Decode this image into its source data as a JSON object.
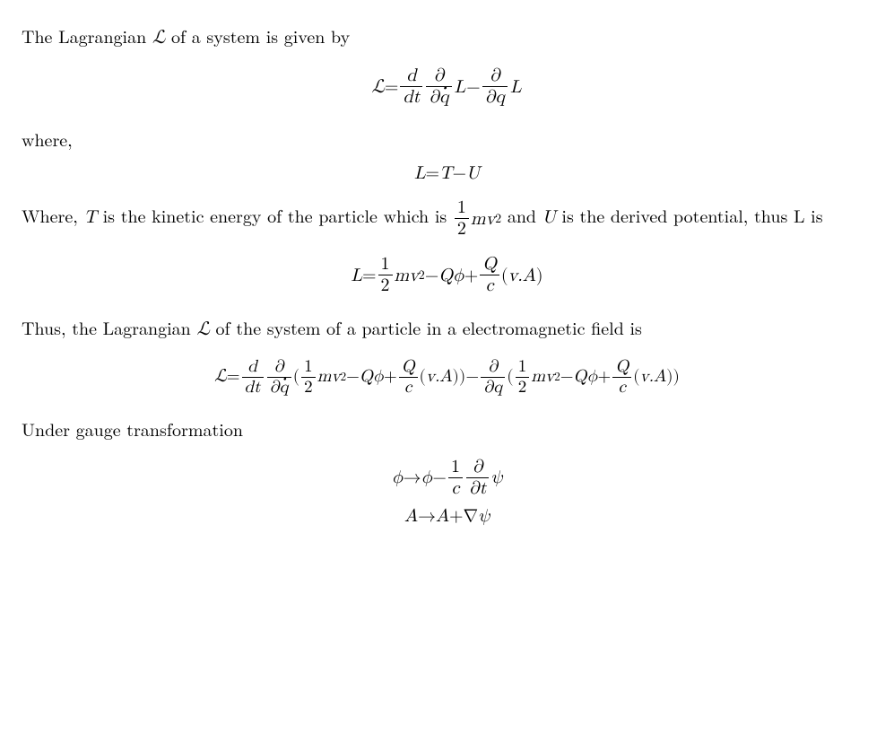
{
  "colors": {
    "text": "#000000",
    "background": "#ffffff",
    "rule": "#000000"
  },
  "typography": {
    "body_fontsize_pt": 15,
    "math_family": "Latin Modern Math"
  },
  "p1": {
    "text_a": "The Lagrangian ",
    "sym_L": "ℒ",
    "text_b": " of a system is given by"
  },
  "eq1": {
    "lhs": "ℒ",
    "eq": " = ",
    "frac1_num": "d",
    "frac1_den": "dt",
    "frac2_num": "∂",
    "frac2_den_a": "∂",
    "frac2_den_q": "q",
    "L": "L",
    "minus": " − ",
    "frac3_num": "∂",
    "frac3_den": "∂q",
    "L2": "L"
  },
  "p2": {
    "text": "where,"
  },
  "eq2": {
    "L": "L",
    "eq": " = ",
    "T": "T",
    "minus": " − ",
    "U": "U"
  },
  "p3": {
    "a": "Where, ",
    "T": "T",
    "b": " is the kinetic energy of the particle which is ",
    "half_num": "1",
    "half_den": "2",
    "mv2_m": "m",
    "mv2_v": "v",
    "mv2_exp": "2",
    "c": " and ",
    "U": "U",
    "d": " is the derived potential, thus L is"
  },
  "eq3": {
    "L": "L",
    "eq": " = ",
    "half_num": "1",
    "half_den": "2",
    "m": "m",
    "v": "v",
    "exp2": "2",
    "minus": " − ",
    "Q": "Q",
    "phi": "ϕ",
    "plus": " + ",
    "Q2": "Q",
    "c": "c",
    "paren_l": " (",
    "vA": "v.A",
    "paren_r": ")"
  },
  "p4": {
    "a": "Thus, the Lagrangian ",
    "sym_L": "ℒ",
    "b": " of the system of a particle in a electromagnetic field is"
  },
  "eq4": {
    "lhs": "ℒ",
    "eq": " = ",
    "d_num": "d",
    "d_den": "dt",
    "p_num": "∂",
    "p_den_a": "∂",
    "p_den_q": "q",
    "lpar": "(",
    "half_num": "1",
    "half_den": "2",
    "m": "m",
    "v": "v",
    "exp2": "2",
    "minus": " − ",
    "Q": "Q",
    "phi": "ϕ",
    "plus": " + ",
    "Q2": "Q",
    "c": "c",
    "ipar_l": " (",
    "vA": "v.A",
    "ipar_r": ")",
    "rpar": ")",
    "minus2": " − ",
    "p2_num": "∂",
    "p2_den": "∂q",
    "lpar2": "(",
    "half2_num": "1",
    "half2_den": "2",
    "rpar2": ")"
  },
  "p5": {
    "text": "Under gauge transformation"
  },
  "eq5": {
    "line1": {
      "phi": "ϕ",
      "arrow": " → ",
      "phi2": "ϕ",
      "minus": " − ",
      "one": "1",
      "c": "c",
      "pnum": "∂",
      "pden": "∂t",
      "psi": "ψ"
    },
    "line2": {
      "A": "A",
      "arrow": " → ",
      "A2": "A",
      "plus": " + ",
      "nabla": "∇",
      "psi": "ψ"
    }
  }
}
